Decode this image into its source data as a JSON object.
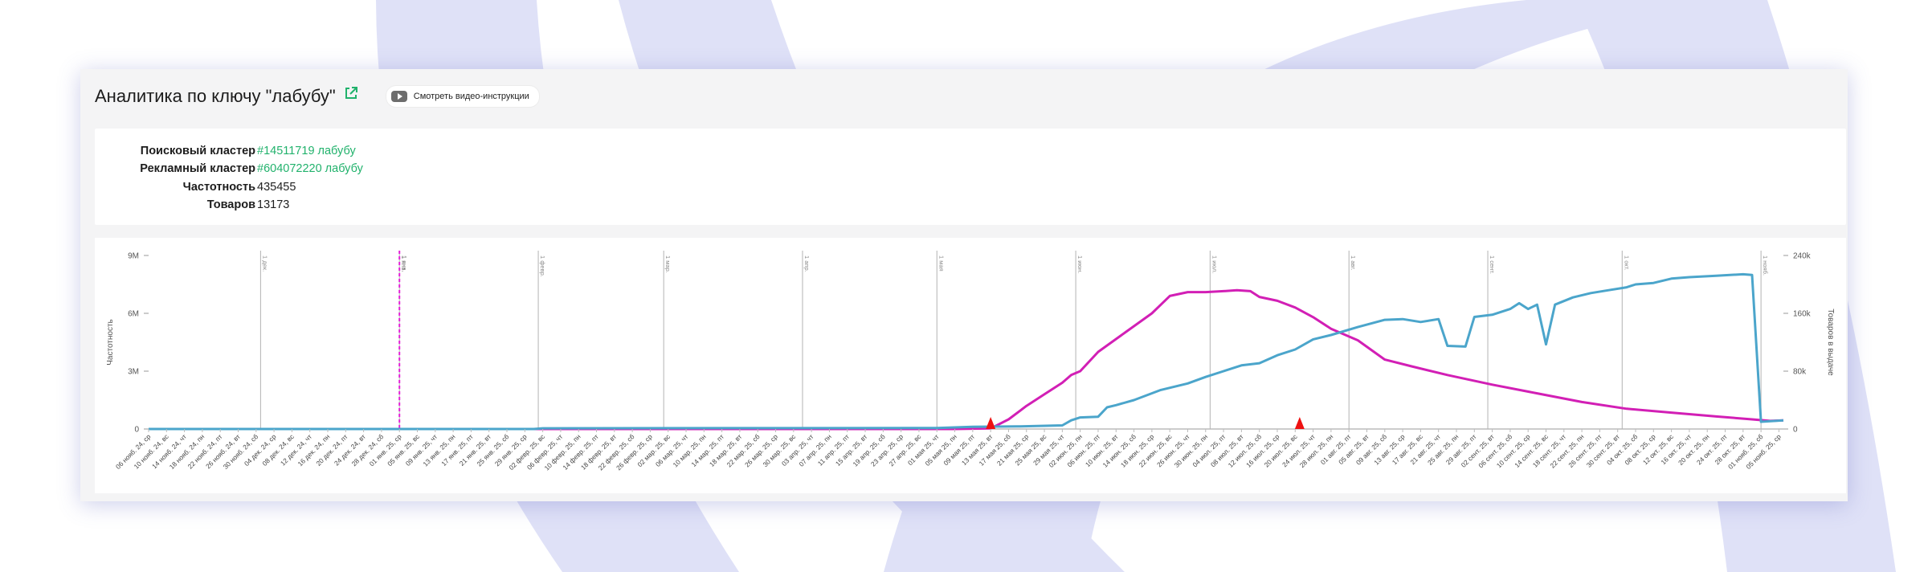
{
  "header": {
    "title": "Аналитика по ключу \"лабубу\"",
    "video_button_label": "Смотреть видео-инструкции"
  },
  "info": [
    {
      "label": "Поисковый кластер",
      "value": "#14511719 лабубу",
      "link": true
    },
    {
      "label": "Рекламный кластер",
      "value": "#604072220 лабубу",
      "link": true
    },
    {
      "label": "Частотность",
      "value": "435455",
      "link": false
    },
    {
      "label": "Товаров",
      "value": "13173",
      "link": false
    }
  ],
  "colors": {
    "frequency_line": "#d21fb5",
    "products_line": "#4ba5cb",
    "marker": "#ee1111",
    "month_line": "#b3b3b3",
    "current_marker_line": "#e51fd9",
    "link": "#21b26c"
  },
  "chart_data": {
    "type": "line",
    "left_axis": {
      "label": "Частотность",
      "ticks": [
        "0",
        "3M",
        "6M",
        "9M"
      ],
      "range": [
        0,
        9000000
      ]
    },
    "right_axis": {
      "label": "Товаров в выдаче",
      "ticks": [
        "0",
        "80k",
        "160k",
        "240k"
      ],
      "range": [
        0,
        240000
      ]
    },
    "x_range": [
      0,
      365
    ],
    "month_lines": [
      {
        "x": 25,
        "label": "1 дек."
      },
      {
        "x": 56,
        "label": "1 янв."
      },
      {
        "x": 87,
        "label": "1 февр."
      },
      {
        "x": 115,
        "label": "1 мар."
      },
      {
        "x": 146,
        "label": "1 апр."
      },
      {
        "x": 176,
        "label": "1 мая"
      },
      {
        "x": 207,
        "label": "1 июн."
      },
      {
        "x": 237,
        "label": "1 июл."
      },
      {
        "x": 268,
        "label": "1 авг."
      },
      {
        "x": 299,
        "label": "1 сент."
      },
      {
        "x": 329,
        "label": "1 окт."
      },
      {
        "x": 360,
        "label": "1 нояб."
      }
    ],
    "current_date_line": {
      "x": 56,
      "label": "1 янв."
    },
    "markers": [
      {
        "x": 188
      },
      {
        "x": 257
      }
    ],
    "x_tick_labels": [
      "06 нояб. 24, ср",
      "10 нояб. 24, вс",
      "14 нояб. 24, чт",
      "18 нояб. 24, пн",
      "22 нояб. 24, пт",
      "26 нояб. 24, вт",
      "30 нояб. 24, сб",
      "04 дек. 24, ср",
      "08 дек. 24, вс",
      "12 дек. 24, чт",
      "16 дек. 24, пн",
      "20 дек. 24, пт",
      "24 дек. 24, вт",
      "28 дек. 24, сб",
      "01 янв. 25, ср",
      "05 янв. 25, вс",
      "09 янв. 25, чт",
      "13 янв. 25, пн",
      "17 янв. 25, пт",
      "21 янв. 25, вт",
      "25 янв. 25, сб",
      "29 янв. 25, ср",
      "02 февр. 25, вс",
      "06 февр. 25, чт",
      "10 февр. 25, пн",
      "14 февр. 25, пт",
      "18 февр. 25, вт",
      "22 февр. 25, сб",
      "26 февр. 25, ср",
      "02 мар. 25, вс",
      "06 мар. 25, чт",
      "10 мар. 25, пн",
      "14 мар. 25, пт",
      "18 мар. 25, вт",
      "22 мар. 25, сб",
      "26 мар. 25, ср",
      "30 мар. 25, вс",
      "03 апр. 25, чт",
      "07 апр. 25, пн",
      "11 апр. 25, пт",
      "15 апр. 25, вт",
      "19 апр. 25, сб",
      "23 апр. 25, ср",
      "27 апр. 25, вс",
      "01 мая 25, чт",
      "05 мая 25, пн",
      "09 мая 25, пт",
      "13 мая 25, вт",
      "17 мая 25, сб",
      "21 мая 25, ср",
      "25 мая 25, вс",
      "29 мая 25, чт",
      "02 июн. 25, пн",
      "06 июн. 25, пт",
      "10 июн. 25, вт",
      "14 июн. 25, сб",
      "18 июн. 25, ср",
      "22 июн. 25, вс",
      "26 июн. 25, чт",
      "30 июн. 25, пн",
      "04 июл. 25, пт",
      "08 июл. 25, вт",
      "12 июл. 25, сб",
      "16 июл. 25, ср",
      "20 июл. 25, вс",
      "24 июл. 25, чт",
      "28 июл. 25, пн",
      "01 авг. 25, пт",
      "05 авг. 25, вт",
      "09 авг. 25, сб",
      "13 авг. 25, ср",
      "17 авг. 25, вс",
      "21 авг. 25, чт",
      "25 авг. 25, пн",
      "29 авг. 25, пт",
      "02 сент. 25, вт",
      "06 сент. 25, сб",
      "10 сент. 25, ср",
      "14 сент. 25, вс",
      "18 сент. 25, чт",
      "22 сент. 25, пн",
      "26 сент. 25, пт",
      "30 сент. 25, вт",
      "04 окт. 25, сб",
      "08 окт. 25, ср",
      "12 окт. 25, вс",
      "16 окт. 25, чт",
      "20 окт. 25, пн",
      "24 окт. 25, пт",
      "28 окт. 25, вт",
      "01 нояб. 25, сб",
      "05 нояб. 25, ср"
    ],
    "series": [
      {
        "name": "Частотность",
        "axis": "left",
        "points": [
          [
            0,
            0
          ],
          [
            180,
            0
          ],
          [
            188,
            30000
          ],
          [
            192,
            500000
          ],
          [
            196,
            1200000
          ],
          [
            200,
            1800000
          ],
          [
            204,
            2400000
          ],
          [
            206,
            2800000
          ],
          [
            208,
            3000000
          ],
          [
            212,
            4000000
          ],
          [
            218,
            5000000
          ],
          [
            224,
            6000000
          ],
          [
            228,
            6900000
          ],
          [
            232,
            7100000
          ],
          [
            236,
            7100000
          ],
          [
            240,
            7150000
          ],
          [
            243,
            7200000
          ],
          [
            246,
            7150000
          ],
          [
            248,
            6850000
          ],
          [
            252,
            6650000
          ],
          [
            256,
            6300000
          ],
          [
            260,
            5800000
          ],
          [
            264,
            5200000
          ],
          [
            270,
            4600000
          ],
          [
            276,
            3600000
          ],
          [
            282,
            3250000
          ],
          [
            290,
            2800000
          ],
          [
            300,
            2300000
          ],
          [
            310,
            1850000
          ],
          [
            320,
            1400000
          ],
          [
            330,
            1050000
          ],
          [
            340,
            850000
          ],
          [
            350,
            650000
          ],
          [
            358,
            500000
          ],
          [
            362,
            420000
          ],
          [
            365,
            450000
          ]
        ]
      },
      {
        "name": "Товаров в выдаче",
        "axis": "right",
        "points": [
          [
            0,
            0
          ],
          [
            86,
            0
          ],
          [
            88,
            1000
          ],
          [
            176,
            1500
          ],
          [
            184,
            3000
          ],
          [
            194,
            3500
          ],
          [
            204,
            5000
          ],
          [
            206,
            12000
          ],
          [
            208,
            16000
          ],
          [
            212,
            17000
          ],
          [
            214,
            30000
          ],
          [
            216,
            33000
          ],
          [
            220,
            40000
          ],
          [
            226,
            54000
          ],
          [
            232,
            63000
          ],
          [
            236,
            72000
          ],
          [
            240,
            80000
          ],
          [
            244,
            88000
          ],
          [
            248,
            91000
          ],
          [
            252,
            102000
          ],
          [
            256,
            110000
          ],
          [
            260,
            124000
          ],
          [
            264,
            130000
          ],
          [
            270,
            141000
          ],
          [
            276,
            151000
          ],
          [
            280,
            152000
          ],
          [
            284,
            148000
          ],
          [
            288,
            152000
          ],
          [
            290,
            115000
          ],
          [
            294,
            114000
          ],
          [
            296,
            155000
          ],
          [
            300,
            158000
          ],
          [
            304,
            166000
          ],
          [
            306,
            174000
          ],
          [
            308,
            166000
          ],
          [
            310,
            172000
          ],
          [
            312,
            117000
          ],
          [
            314,
            172000
          ],
          [
            318,
            182000
          ],
          [
            322,
            188000
          ],
          [
            326,
            192000
          ],
          [
            330,
            196000
          ],
          [
            332,
            200000
          ],
          [
            336,
            202000
          ],
          [
            340,
            208000
          ],
          [
            344,
            210000
          ],
          [
            350,
            212000
          ],
          [
            356,
            214000
          ],
          [
            358,
            213000
          ],
          [
            360,
            10000
          ],
          [
            365,
            12000
          ]
        ]
      }
    ]
  }
}
